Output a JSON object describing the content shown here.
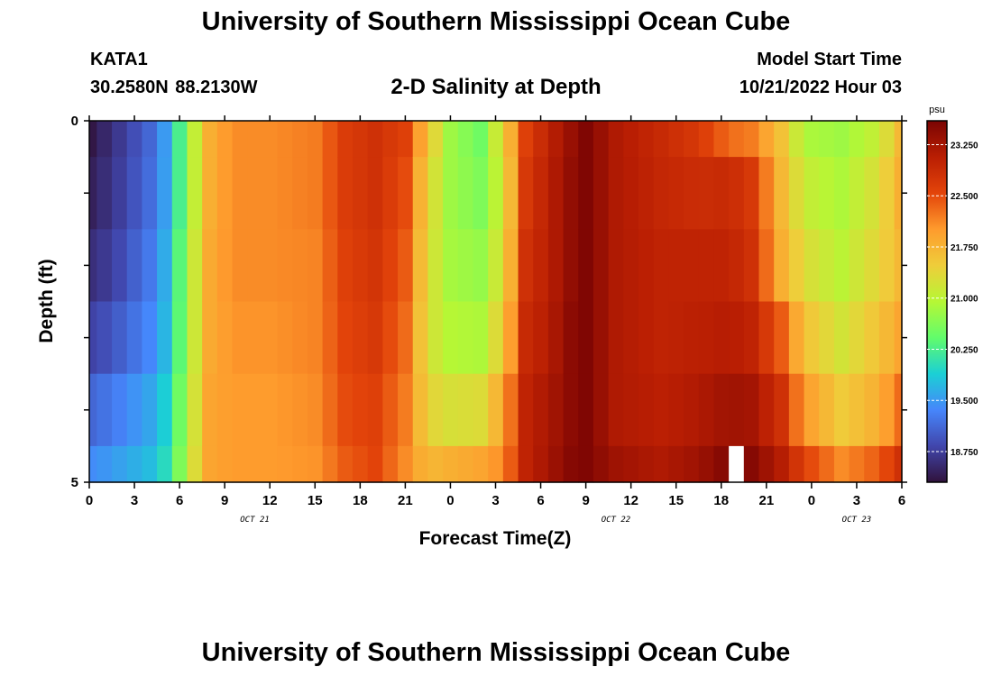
{
  "header": {
    "title": "University of Southern Mississippi Ocean Cube",
    "station": "KATA1",
    "coords": "30.2580N  88.2130W",
    "plot_title": "2-D Salinity at Depth",
    "start_label": "Model Start Time",
    "start_value": "10/21/2022 Hour 03"
  },
  "footer": {
    "title": "University of Southern Mississippi Ocean Cube"
  },
  "colors": {
    "background": "#ffffff",
    "axis": "#000000",
    "gap": "#ffffff"
  },
  "chart_data": {
    "type": "heatmap",
    "title": "2-D Salinity at Depth",
    "xlabel": "Forecast Time(Z)",
    "ylabel": "Depth (ft)",
    "unit": "psu",
    "x_hours": [
      0,
      54
    ],
    "x_tick_labels": [
      "0",
      "3",
      "6",
      "9",
      "12",
      "15",
      "18",
      "21",
      "0",
      "3",
      "6",
      "9",
      "12",
      "15",
      "18",
      "21",
      "0",
      "3",
      "6"
    ],
    "date_labels": [
      {
        "label": "OCT 21",
        "hour": 11
      },
      {
        "label": "OCT 22",
        "hour": 35
      },
      {
        "label": "OCT 23",
        "hour": 51
      }
    ],
    "ylim": [
      0,
      5
    ],
    "y_tick_labels": [
      "0",
      "5"
    ],
    "depth_rows": [
      "0-0.5",
      "0.5-1.5",
      "1.5-2.5",
      "2.5-3.5",
      "3.5-4.5",
      "4.5-5"
    ],
    "depth_row_bounds": [
      0,
      0.5,
      1.5,
      2.5,
      3.5,
      4.5,
      5
    ],
    "colorbar": {
      "range": [
        18.3,
        23.6
      ],
      "ticks": [
        "18.750",
        "19.500",
        "20.250",
        "21.000",
        "21.750",
        "22.500",
        "23.250"
      ],
      "stops": [
        "#30123b",
        "#4146ac",
        "#4686fb",
        "#1bd0d5",
        "#62fc6b",
        "#b6f735",
        "#efcd3a",
        "#fe9b2d",
        "#e3440a",
        "#b91e03",
        "#7a0403"
      ]
    },
    "time_keyframes": [
      {
        "hour": 0,
        "values": [
          18.35,
          18.45,
          18.6,
          18.8,
          19.1,
          19.4
        ]
      },
      {
        "hour": 1.5,
        "values": [
          18.6,
          18.65,
          18.75,
          18.95,
          19.25,
          19.5
        ]
      },
      {
        "hour": 4.5,
        "values": [
          19.2,
          19.25,
          19.35,
          19.45,
          19.65,
          19.8
        ]
      },
      {
        "hour": 5.5,
        "values": [
          19.8,
          19.8,
          19.9,
          19.95,
          20.1,
          20.2
        ]
      },
      {
        "hour": 6.5,
        "values": [
          20.7,
          20.7,
          20.8,
          20.8,
          20.9,
          21.0
        ]
      },
      {
        "hour": 8,
        "values": [
          21.8,
          21.8,
          21.85,
          21.85,
          21.9,
          21.9
        ]
      },
      {
        "hour": 9.5,
        "values": [
          22.1,
          22.1,
          22.1,
          22.05,
          22.0,
          22.0
        ]
      },
      {
        "hour": 12,
        "values": [
          22.1,
          22.1,
          22.1,
          22.05,
          22.0,
          22.0
        ]
      },
      {
        "hour": 15,
        "values": [
          22.2,
          22.2,
          22.15,
          22.15,
          22.1,
          22.05
        ]
      },
      {
        "hour": 17,
        "values": [
          22.65,
          22.65,
          22.6,
          22.55,
          22.5,
          22.4
        ]
      },
      {
        "hour": 19,
        "values": [
          22.8,
          22.8,
          22.75,
          22.7,
          22.6,
          22.55
        ]
      },
      {
        "hour": 21,
        "values": [
          22.6,
          22.5,
          22.4,
          22.3,
          22.2,
          22.1
        ]
      },
      {
        "hour": 22.5,
        "values": [
          21.6,
          21.4,
          21.3,
          21.25,
          21.4,
          21.7
        ]
      },
      {
        "hour": 24,
        "values": [
          20.8,
          20.8,
          20.85,
          20.95,
          21.25,
          21.8
        ]
      },
      {
        "hour": 26,
        "values": [
          20.5,
          20.6,
          20.75,
          20.9,
          21.3,
          21.9
        ]
      },
      {
        "hour": 27.5,
        "values": [
          21.4,
          21.2,
          21.3,
          21.5,
          21.9,
          22.1
        ]
      },
      {
        "hour": 29,
        "values": [
          22.6,
          22.7,
          22.8,
          22.9,
          23.0,
          23.0
        ]
      },
      {
        "hour": 30.5,
        "values": [
          23.0,
          23.05,
          23.05,
          23.1,
          23.2,
          23.25
        ]
      },
      {
        "hour": 32,
        "values": [
          23.35,
          23.4,
          23.4,
          23.45,
          23.45,
          23.5
        ]
      },
      {
        "hour": 33,
        "values": [
          23.55,
          23.55,
          23.55,
          23.55,
          23.55,
          23.55
        ]
      },
      {
        "hour": 35,
        "values": [
          23.15,
          23.15,
          23.15,
          23.15,
          23.15,
          23.3
        ]
      },
      {
        "hour": 38,
        "values": [
          22.9,
          22.95,
          23.0,
          23.0,
          23.05,
          23.15
        ]
      },
      {
        "hour": 40.5,
        "values": [
          22.7,
          22.85,
          23.0,
          23.05,
          23.15,
          23.3
        ]
      },
      {
        "hour": 42.5,
        "values": [
          22.3,
          22.9,
          23.0,
          23.1,
          23.3,
          23.55
        ]
      },
      {
        "hour": 44,
        "values": [
          22.2,
          22.7,
          22.8,
          23.0,
          23.25,
          23.5
        ]
      },
      {
        "hour": 46,
        "values": [
          21.6,
          21.7,
          21.8,
          22.4,
          22.8,
          23.1
        ]
      },
      {
        "hour": 47.5,
        "values": [
          20.9,
          21.1,
          21.3,
          21.6,
          22.0,
          22.6
        ]
      },
      {
        "hour": 50,
        "values": [
          20.8,
          20.9,
          21.0,
          21.2,
          21.5,
          22.1
        ]
      },
      {
        "hour": 52.5,
        "values": [
          21.1,
          21.3,
          21.4,
          21.6,
          21.8,
          22.4
        ]
      },
      {
        "hour": 54,
        "values": [
          21.7,
          21.8,
          21.7,
          21.9,
          22.3,
          22.8
        ]
      }
    ],
    "missing_cells": [
      {
        "hour": 43,
        "row": 5
      }
    ]
  }
}
